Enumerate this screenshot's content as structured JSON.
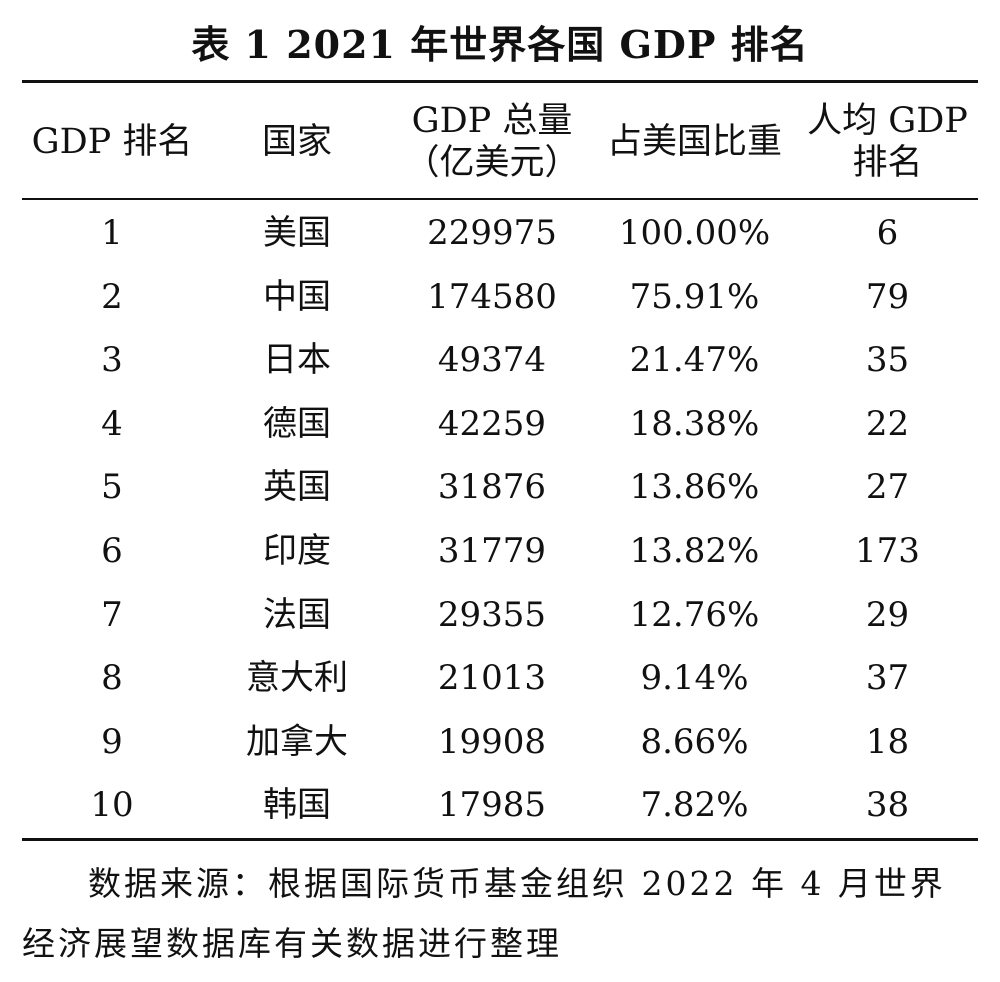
{
  "caption": "表 1    2021 年世界各国 GDP 排名",
  "headers": {
    "rank": "GDP 排名",
    "country": "国家",
    "gdp_line1": "GDP 总量",
    "gdp_line2": "（亿美元）",
    "share": "占美国比重",
    "per_capita_line1": "人均 GDP",
    "per_capita_line2": "排名"
  },
  "rows": [
    {
      "rank": "1",
      "country": "美国",
      "gdp": "229975",
      "share": "100.00%",
      "per_capita_rank": "6"
    },
    {
      "rank": "2",
      "country": "中国",
      "gdp": "174580",
      "share": "75.91%",
      "per_capita_rank": "79"
    },
    {
      "rank": "3",
      "country": "日本",
      "gdp": "49374",
      "share": "21.47%",
      "per_capita_rank": "35"
    },
    {
      "rank": "4",
      "country": "德国",
      "gdp": "42259",
      "share": "18.38%",
      "per_capita_rank": "22"
    },
    {
      "rank": "5",
      "country": "英国",
      "gdp": "31876",
      "share": "13.86%",
      "per_capita_rank": "27"
    },
    {
      "rank": "6",
      "country": "印度",
      "gdp": "31779",
      "share": "13.82%",
      "per_capita_rank": "173"
    },
    {
      "rank": "7",
      "country": "法国",
      "gdp": "29355",
      "share": "12.76%",
      "per_capita_rank": "29"
    },
    {
      "rank": "8",
      "country": "意大利",
      "gdp": "21013",
      "share": "9.14%",
      "per_capita_rank": "37"
    },
    {
      "rank": "9",
      "country": "加拿大",
      "gdp": "19908",
      "share": "8.66%",
      "per_capita_rank": "18"
    },
    {
      "rank": "10",
      "country": "韩国",
      "gdp": "17985",
      "share": "7.82%",
      "per_capita_rank": "38"
    }
  ],
  "source_note": {
    "line1": "数据来源：根据国际货币基金组织 2022 年 4 月世界",
    "line2": "经济展望数据库有关数据进行整理"
  }
}
